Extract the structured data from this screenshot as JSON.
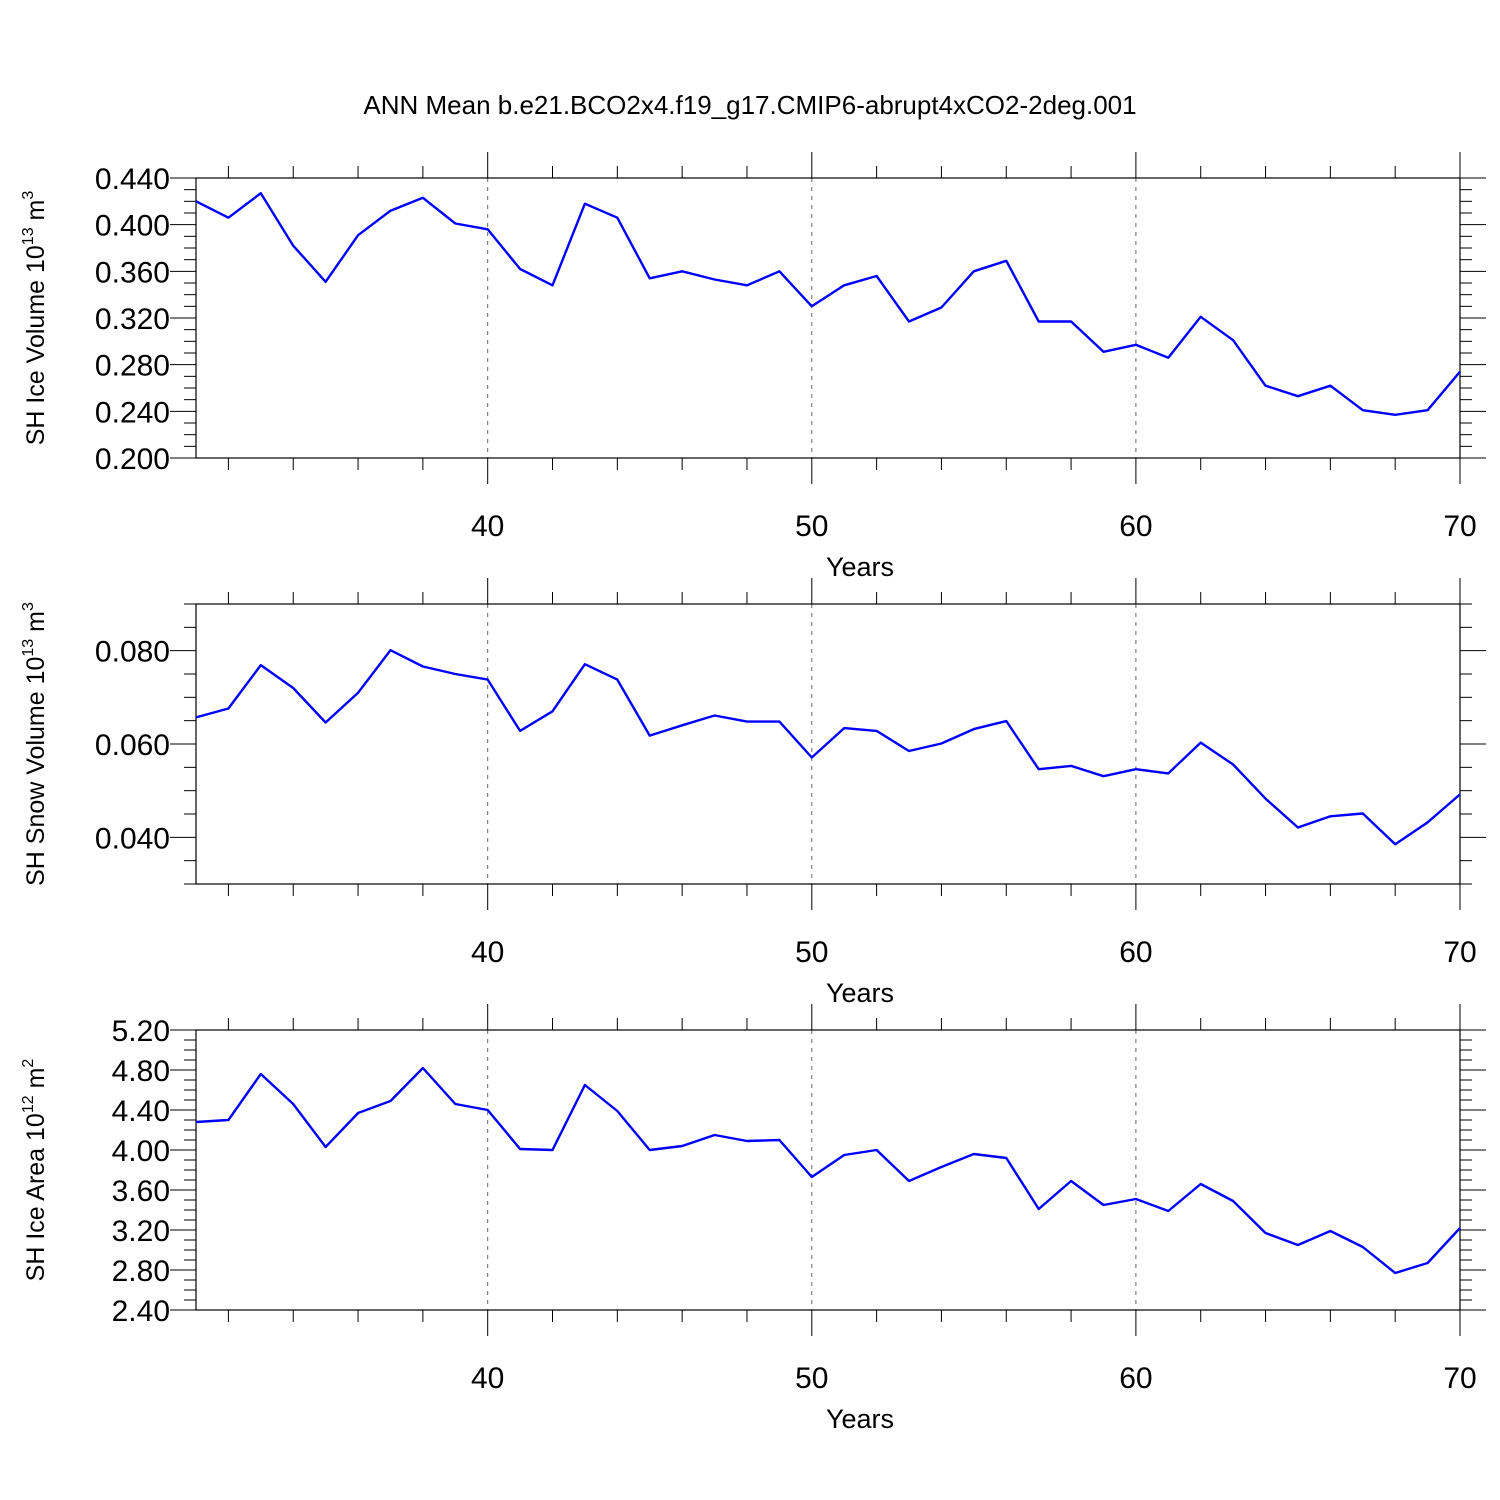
{
  "title": "ANN Mean b.e21.BCO2x4.f19_g17.CMIP6-abrupt4xCO2-2deg.001",
  "colors": {
    "line": "#0000ff",
    "axis": "#000000",
    "grid": "#666666"
  },
  "chart_data": [
    {
      "type": "line",
      "ylabel_main": "SH Ice Volume 10",
      "ylabel_exp": "13",
      "ylabel_unit": " m",
      "ylabel_unit_exp": "3",
      "xlabel": "Years",
      "xlim": [
        31,
        70
      ],
      "ylim": [
        0.2,
        0.44
      ],
      "xticks": [
        40,
        50,
        60,
        70
      ],
      "yticks": [
        0.2,
        0.24,
        0.28,
        0.32,
        0.36,
        0.4,
        0.44
      ],
      "ytick_labels": [
        "0.200",
        "0.240",
        "0.280",
        "0.320",
        "0.360",
        "0.400",
        "0.440"
      ],
      "yminor_step": 0.01,
      "grid": "dashed vertical at major x ticks",
      "x": [
        31,
        32,
        33,
        34,
        35,
        36,
        37,
        38,
        39,
        40,
        41,
        42,
        43,
        44,
        45,
        46,
        47,
        48,
        49,
        50,
        51,
        52,
        53,
        54,
        55,
        56,
        57,
        58,
        59,
        60,
        61,
        62,
        63,
        64,
        65,
        66,
        67,
        68,
        69,
        70
      ],
      "values": [
        0.42,
        0.406,
        0.427,
        0.382,
        0.351,
        0.391,
        0.412,
        0.423,
        0.401,
        0.396,
        0.362,
        0.348,
        0.418,
        0.406,
        0.354,
        0.36,
        0.353,
        0.348,
        0.36,
        0.33,
        0.348,
        0.356,
        0.317,
        0.329,
        0.36,
        0.369,
        0.317,
        0.317,
        0.291,
        0.297,
        0.286,
        0.321,
        0.301,
        0.262,
        0.253,
        0.262,
        0.241,
        0.237,
        0.241,
        0.274
      ]
    },
    {
      "type": "line",
      "ylabel_main": "SH Snow Volume 10",
      "ylabel_exp": "13",
      "ylabel_unit": " m",
      "ylabel_unit_exp": "3",
      "xlabel": "Years",
      "xlim": [
        31,
        70
      ],
      "ylim": [
        0.03,
        0.09
      ],
      "xticks": [
        40,
        50,
        60,
        70
      ],
      "yticks": [
        0.04,
        0.06,
        0.08
      ],
      "ytick_labels": [
        "0.040",
        "0.060",
        "0.080"
      ],
      "yminor_step": 0.005,
      "grid": "dashed vertical at major x ticks",
      "x": [
        31,
        32,
        33,
        34,
        35,
        36,
        37,
        38,
        39,
        40,
        41,
        42,
        43,
        44,
        45,
        46,
        47,
        48,
        49,
        50,
        51,
        52,
        53,
        54,
        55,
        56,
        57,
        58,
        59,
        60,
        61,
        62,
        63,
        64,
        65,
        66,
        67,
        68,
        69,
        70
      ],
      "values": [
        0.0657,
        0.0676,
        0.0769,
        0.072,
        0.0646,
        0.071,
        0.0801,
        0.0766,
        0.075,
        0.0738,
        0.0628,
        0.067,
        0.0771,
        0.0738,
        0.0618,
        0.064,
        0.0661,
        0.0648,
        0.0648,
        0.0571,
        0.0634,
        0.0628,
        0.0585,
        0.0601,
        0.0632,
        0.0649,
        0.0546,
        0.0553,
        0.0531,
        0.0546,
        0.0537,
        0.0603,
        0.0556,
        0.0483,
        0.0421,
        0.0445,
        0.0451,
        0.0385,
        0.0432,
        0.0492
      ]
    },
    {
      "type": "line",
      "ylabel_main": "SH Ice Area 10",
      "ylabel_exp": "12",
      "ylabel_unit": " m",
      "ylabel_unit_exp": "2",
      "xlabel": "Years",
      "xlim": [
        31,
        70
      ],
      "ylim": [
        2.4,
        5.2
      ],
      "xticks": [
        40,
        50,
        60,
        70
      ],
      "yticks": [
        2.4,
        2.8,
        3.2,
        3.6,
        4.0,
        4.4,
        4.8,
        5.2
      ],
      "ytick_labels": [
        "2.40",
        "2.80",
        "3.20",
        "3.60",
        "4.00",
        "4.40",
        "4.80",
        "5.20"
      ],
      "yminor_step": 0.1,
      "grid": "dashed vertical at major x ticks",
      "x": [
        31,
        32,
        33,
        34,
        35,
        36,
        37,
        38,
        39,
        40,
        41,
        42,
        43,
        44,
        45,
        46,
        47,
        48,
        49,
        50,
        51,
        52,
        53,
        54,
        55,
        56,
        57,
        58,
        59,
        60,
        61,
        62,
        63,
        64,
        65,
        66,
        67,
        68,
        69,
        70
      ],
      "values": [
        4.28,
        4.3,
        4.76,
        4.46,
        4.03,
        4.37,
        4.49,
        4.82,
        4.46,
        4.4,
        4.01,
        4.0,
        4.65,
        4.39,
        4.0,
        4.04,
        4.15,
        4.09,
        4.1,
        3.73,
        3.95,
        4.0,
        3.69,
        3.83,
        3.96,
        3.92,
        3.41,
        3.69,
        3.45,
        3.51,
        3.39,
        3.66,
        3.49,
        3.17,
        3.05,
        3.19,
        3.03,
        2.77,
        2.87,
        3.22
      ]
    }
  ]
}
